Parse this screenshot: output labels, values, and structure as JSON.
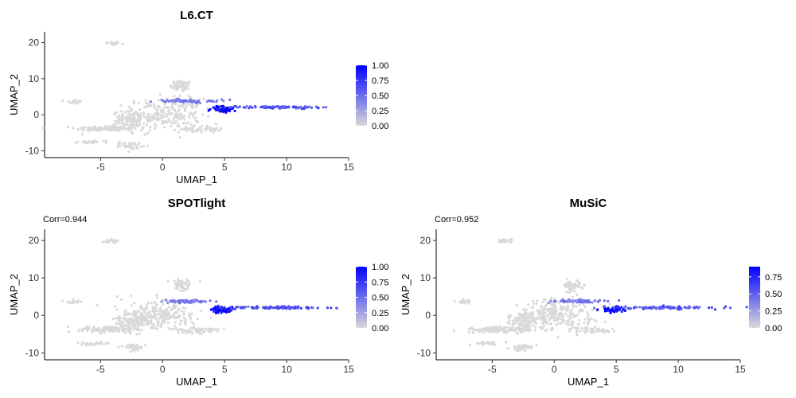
{
  "chart_data": [
    {
      "type": "scatter",
      "title": "L6.CT",
      "subtitle": "",
      "xlabel": "UMAP_1",
      "ylabel": "UMAP_2",
      "xlim": [
        -9,
        15
      ],
      "ylim": [
        -11,
        23
      ],
      "xticks": [
        "-5",
        "0",
        "5",
        "10",
        "15"
      ],
      "yticks": [
        "-10",
        "0",
        "10",
        "20"
      ],
      "legend": {
        "position": "right",
        "ticks": [
          "0.00",
          "0.25",
          "0.50",
          "0.75",
          "1.00"
        ],
        "range": [
          0,
          1
        ]
      },
      "colors": {
        "low": "#d9d9d9",
        "high": "#0000ff"
      },
      "grid": false
    },
    {
      "type": "scatter",
      "title": "SPOTlight",
      "subtitle": "Corr=0.944",
      "xlabel": "UMAP_1",
      "ylabel": "UMAP_2",
      "xlim": [
        -9,
        15
      ],
      "ylim": [
        -11,
        23
      ],
      "xticks": [
        "-5",
        "0",
        "5",
        "10",
        "15"
      ],
      "yticks": [
        "-10",
        "0",
        "10",
        "20"
      ],
      "legend": {
        "position": "right",
        "ticks": [
          "0.00",
          "0.25",
          "0.50",
          "0.75",
          "1.00"
        ],
        "range": [
          0,
          1
        ]
      },
      "colors": {
        "low": "#d9d9d9",
        "high": "#0000ff"
      },
      "grid": false
    },
    {
      "type": "scatter",
      "title": "MuSiC",
      "subtitle": "Corr=0.952",
      "xlabel": "UMAP_1",
      "ylabel": "UMAP_2",
      "xlim": [
        -9,
        15
      ],
      "ylim": [
        -11,
        23
      ],
      "xticks": [
        "-5",
        "0",
        "5",
        "10",
        "15"
      ],
      "yticks": [
        "-10",
        "0",
        "10",
        "20"
      ],
      "legend": {
        "position": "right",
        "ticks": [
          "0.00",
          "0.25",
          "0.50",
          "0.75"
        ],
        "range": [
          0,
          0.9
        ]
      },
      "colors": {
        "low": "#d9d9d9",
        "high": "#0000ff"
      },
      "grid": false
    }
  ],
  "clusters": [
    {
      "cx": -4.0,
      "cy": 19.8,
      "rx": 0.5,
      "ry": 0.5,
      "n": 25,
      "v": 0
    },
    {
      "cx": 1.5,
      "cy": 8.0,
      "rx": 0.8,
      "ry": 1.5,
      "n": 50,
      "v": 0
    },
    {
      "cx": -7.2,
      "cy": 3.6,
      "rx": 0.6,
      "ry": 0.5,
      "n": 20,
      "v": 0
    },
    {
      "cx": -4.5,
      "cy": -3.8,
      "rx": 2.3,
      "ry": 0.7,
      "n": 120,
      "v": 0
    },
    {
      "cx": 0.0,
      "cy": 0.0,
      "rx": 2.8,
      "ry": 4.0,
      "n": 240,
      "v": 0
    },
    {
      "cx": -2.5,
      "cy": -1.5,
      "rx": 1.3,
      "ry": 2.2,
      "n": 90,
      "v": 0
    },
    {
      "cx": 3.0,
      "cy": -4.0,
      "rx": 1.5,
      "ry": 0.8,
      "n": 50,
      "v": 0
    },
    {
      "cx": -5.5,
      "cy": -7.5,
      "rx": 1.2,
      "ry": 0.4,
      "n": 25,
      "v": 0
    },
    {
      "cx": -2.5,
      "cy": -8.5,
      "rx": 0.8,
      "ry": 0.8,
      "n": 35,
      "v": 0
    },
    {
      "cx": 2.0,
      "cy": 3.8,
      "rx": 2.0,
      "ry": 0.4,
      "n": 70,
      "v": 0.45
    },
    {
      "cx": 4.8,
      "cy": 1.6,
      "rx": 0.8,
      "ry": 0.7,
      "n": 80,
      "v": 1.0
    },
    {
      "cx": 9.3,
      "cy": 2.1,
      "rx": 3.8,
      "ry": 0.3,
      "n": 100,
      "v": 0.6
    }
  ]
}
